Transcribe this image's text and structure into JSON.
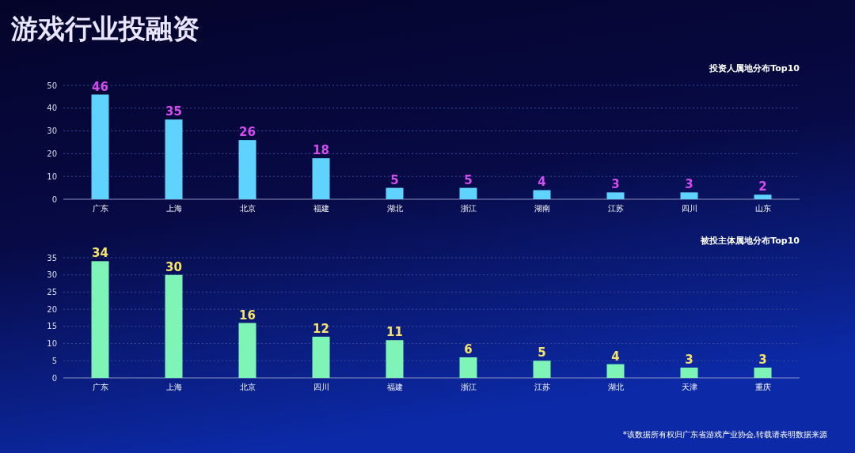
{
  "chart_data": [
    {
      "type": "bar",
      "title": "游戏行业投融资",
      "subtitle": "投资人属地分布Top10",
      "categories": [
        "广东",
        "上海",
        "北京",
        "福建",
        "湖北",
        "浙江",
        "湖南",
        "江苏",
        "四川",
        "山东"
      ],
      "values": [
        46,
        35,
        26,
        18,
        5,
        5,
        4,
        3,
        3,
        2
      ],
      "color": "#5fd3fb",
      "ylim": [
        0,
        50
      ],
      "yticks": [
        0,
        10,
        20,
        30,
        40,
        50
      ],
      "grid": "y",
      "data_labels": true
    },
    {
      "type": "bar",
      "title": "被投主体属地分布Top10",
      "categories": [
        "广东",
        "上海",
        "北京",
        "四川",
        "福建",
        "浙江",
        "江苏",
        "湖北",
        "天津",
        "重庆"
      ],
      "values": [
        34,
        30,
        16,
        12,
        11,
        6,
        5,
        4,
        3,
        3
      ],
      "color": "#7ef5b6",
      "ylim": [
        0,
        35
      ],
      "yticks": [
        0,
        5,
        10,
        15,
        20,
        25,
        30,
        35
      ],
      "grid": "y",
      "data_labels": true,
      "annotations": [
        "*该数据所有权归广东省游戏产业协会,转载请表明数据来源"
      ]
    }
  ]
}
